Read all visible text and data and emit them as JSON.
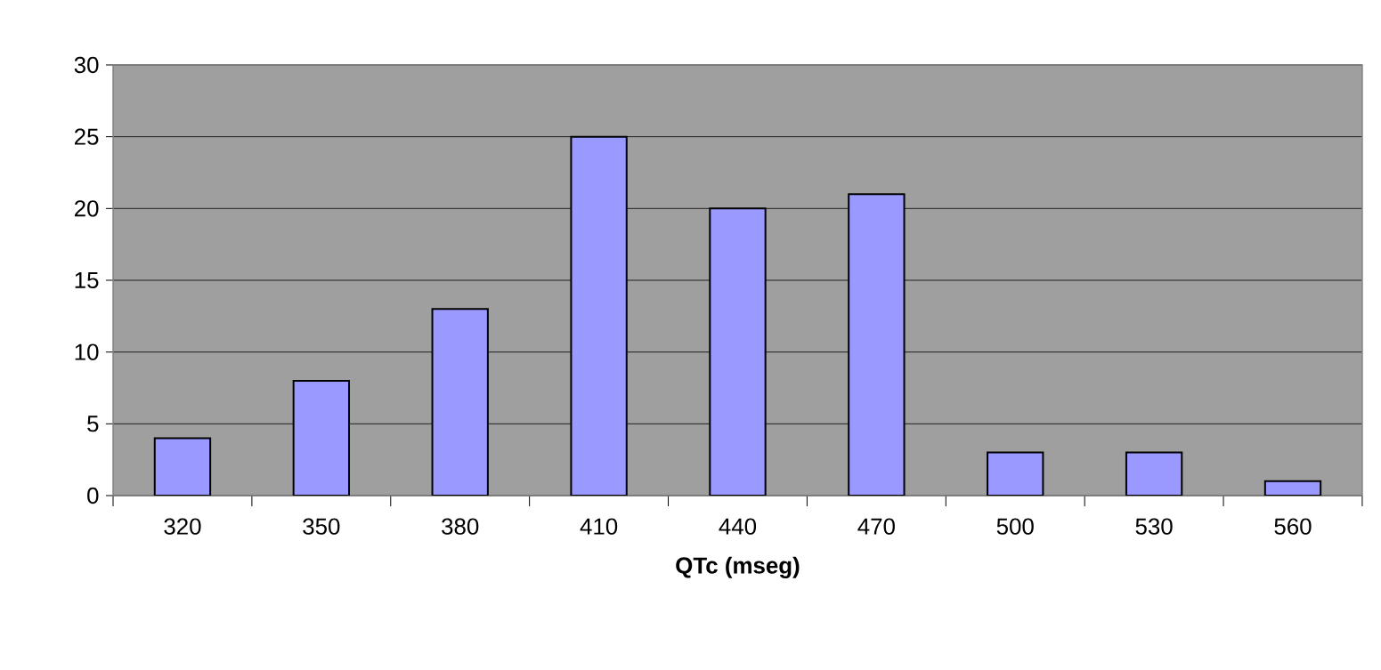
{
  "chart_data": {
    "type": "bar",
    "xlabel": "QTc (mseg)",
    "categories": [
      "320",
      "350",
      "380",
      "410",
      "440",
      "470",
      "500",
      "530",
      "560"
    ],
    "values": [
      4,
      8,
      13,
      25,
      20,
      21,
      3,
      3,
      1
    ],
    "color": "#9999ff",
    "ylim": [
      0,
      30
    ],
    "yticks": [
      0,
      5,
      10,
      15,
      20,
      25,
      30
    ],
    "grid": "y"
  }
}
